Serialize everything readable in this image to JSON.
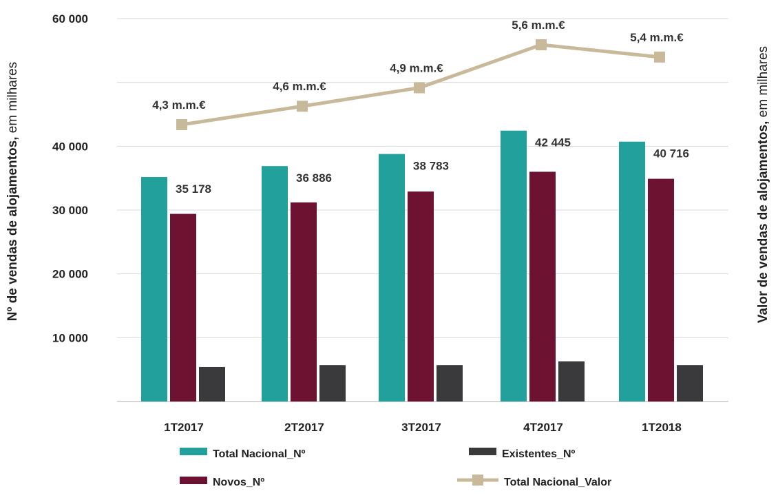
{
  "chart_data": {
    "type": "bar",
    "categories": [
      "1T2017",
      "2T2017",
      "3T2017",
      "4T2017",
      "1T2018"
    ],
    "series": [
      {
        "name": "Total Nacional_Nº",
        "kind": "bar",
        "color": "#22a19c",
        "values": [
          35178,
          36886,
          38783,
          42445,
          40716
        ]
      },
      {
        "name": "Novos_Nº",
        "kind": "bar",
        "color": "#6e1232",
        "values": [
          29400,
          31200,
          32900,
          36000,
          34900
        ]
      },
      {
        "name": "Existentes_Nº",
        "kind": "bar",
        "color": "#3a393b",
        "values": [
          5400,
          5700,
          5700,
          6300,
          5700
        ]
      },
      {
        "name": "Total Nacional_Valor",
        "kind": "line",
        "color": "#c9b99b",
        "values": [
          4.3,
          4.6,
          4.9,
          5.6,
          5.4
        ]
      }
    ],
    "bar_labels": [
      "35 178",
      "36 886",
      "38 783",
      "42 445",
      "40 716"
    ],
    "line_labels": [
      "4,3 m.m.€",
      "4,6 m.m.€",
      "4,9 m.m.€",
      "5,6 m.m.€",
      "5,4 m.m.€"
    ],
    "ylim": [
      0,
      60000
    ],
    "y_ticks": [
      10000,
      20000,
      30000,
      40000,
      50000,
      60000
    ],
    "y_tick_labels": [
      "10 000",
      "20 000",
      "30 000",
      "40 000",
      "",
      "60 000"
    ],
    "ylabel_bold": "Nº de vendas de alojamentos,",
    "ylabel_rest": " em milhares",
    "y2label_bold": "Valor de vendas de alojamentos,",
    "y2label_rest": " em milhares",
    "grid": true,
    "legend_position": "bottom"
  }
}
